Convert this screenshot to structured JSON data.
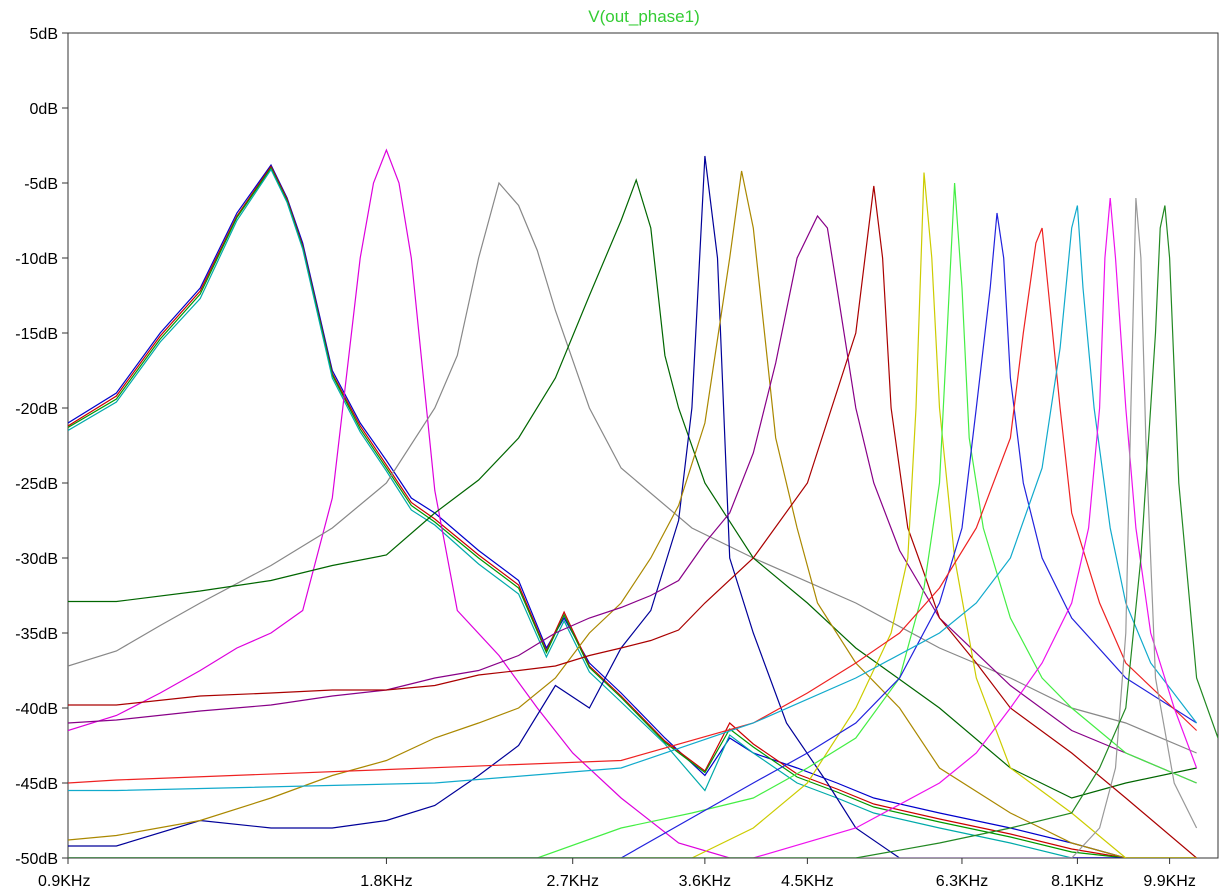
{
  "chart_data": {
    "type": "line",
    "title": "V(out_phase1)",
    "title_color": "#33cc33",
    "xscale": "log",
    "xlim": [
      0.9,
      11.0
    ],
    "ylim": [
      -50,
      5
    ],
    "grid": false,
    "xticks": [
      {
        "value": 0.9,
        "label": "0.9KHz"
      },
      {
        "value": 1.8,
        "label": "1.8KHz"
      },
      {
        "value": 2.7,
        "label": "2.7KHz"
      },
      {
        "value": 3.6,
        "label": "3.6KHz"
      },
      {
        "value": 4.5,
        "label": "4.5KHz"
      },
      {
        "value": 6.3,
        "label": "6.3KHz"
      },
      {
        "value": 8.1,
        "label": "8.1KHz"
      },
      {
        "value": 9.9,
        "label": "9.9KHz"
      }
    ],
    "yticks": [
      {
        "value": 5,
        "label": "5dB"
      },
      {
        "value": 0,
        "label": "0dB"
      },
      {
        "value": -5,
        "label": "-5dB"
      },
      {
        "value": -10,
        "label": "-10dB"
      },
      {
        "value": -15,
        "label": "-15dB"
      },
      {
        "value": -20,
        "label": "-20dB"
      },
      {
        "value": -25,
        "label": "-25dB"
      },
      {
        "value": -30,
        "label": "-30dB"
      },
      {
        "value": -35,
        "label": "-35dB"
      },
      {
        "value": -40,
        "label": "-40dB"
      },
      {
        "value": -45,
        "label": "-45dB"
      },
      {
        "value": -50,
        "label": "-50dB"
      }
    ],
    "series": [
      {
        "color": "#0000cc",
        "x": [
          0.9,
          1.0,
          1.1,
          1.2,
          1.3,
          1.4,
          1.45,
          1.5,
          1.6,
          1.7,
          1.8,
          1.9,
          2.0,
          2.2,
          2.4,
          2.55,
          2.65,
          2.8,
          3.0,
          3.3,
          3.6,
          3.8,
          4.0,
          4.4,
          4.8,
          5.2,
          6.0,
          7.0,
          8.0,
          9.0,
          10.5
        ],
        "y": [
          -21,
          -19,
          -15,
          -12,
          -7,
          -3.8,
          -6,
          -9,
          -17.5,
          -21,
          -23.5,
          -26,
          -27,
          -29.5,
          -31.5,
          -36,
          -34,
          -37,
          -39,
          -42,
          -44.5,
          -42,
          -43,
          -44,
          -45,
          -46,
          -47,
          -48,
          -49,
          -50,
          -50
        ]
      },
      {
        "color": "#cc0000",
        "x": [
          0.9,
          1.0,
          1.1,
          1.2,
          1.3,
          1.4,
          1.45,
          1.5,
          1.6,
          1.7,
          1.8,
          1.9,
          2.0,
          2.2,
          2.4,
          2.55,
          2.65,
          2.8,
          3.0,
          3.3,
          3.6,
          3.8,
          4.0,
          4.4,
          4.8,
          5.2,
          6.0,
          7.0,
          8.0,
          9.0,
          10.5
        ],
        "y": [
          -21.2,
          -19.2,
          -15.2,
          -12.2,
          -7.2,
          -3.9,
          -6.1,
          -9.2,
          -17.7,
          -21.2,
          -23.8,
          -26.3,
          -27.4,
          -29.8,
          -31.8,
          -36.2,
          -33.6,
          -37.2,
          -39.2,
          -42.2,
          -44.2,
          -41,
          -42.4,
          -44.4,
          -45.4,
          -46.4,
          -47.4,
          -48.4,
          -49.4,
          -50,
          -50
        ]
      },
      {
        "color": "#009900",
        "x": [
          0.9,
          1.0,
          1.1,
          1.2,
          1.3,
          1.4,
          1.45,
          1.5,
          1.6,
          1.7,
          1.8,
          1.9,
          2.0,
          2.2,
          2.4,
          2.55,
          2.65,
          2.8,
          3.0,
          3.3,
          3.6,
          3.8,
          4.0,
          4.4,
          4.8,
          5.2,
          6.0,
          7.0,
          8.0,
          9.0,
          10.5
        ],
        "y": [
          -21.3,
          -19.4,
          -15.4,
          -12.4,
          -7.3,
          -4.0,
          -6.2,
          -9.3,
          -17.8,
          -21.4,
          -24,
          -26.5,
          -27.6,
          -30,
          -32,
          -36.3,
          -33.8,
          -37.3,
          -39.3,
          -42.3,
          -44.3,
          -41.4,
          -42.6,
          -44.6,
          -45.6,
          -46.6,
          -47.6,
          -48.6,
          -49.6,
          -50,
          -50
        ]
      },
      {
        "color": "#00aaaa",
        "x": [
          0.9,
          1.0,
          1.1,
          1.2,
          1.3,
          1.4,
          1.45,
          1.5,
          1.6,
          1.7,
          1.8,
          1.9,
          2.0,
          2.2,
          2.4,
          2.55,
          2.65,
          2.8,
          3.0,
          3.3,
          3.6,
          3.8,
          4.0,
          4.4,
          4.8,
          5.2,
          6.0,
          7.0,
          8.0,
          9.0,
          10.5
        ],
        "y": [
          -21.5,
          -19.6,
          -15.6,
          -12.7,
          -7.5,
          -4.1,
          -6.3,
          -9.4,
          -18,
          -21.6,
          -24.2,
          -26.8,
          -27.8,
          -30.4,
          -32.4,
          -36.6,
          -34.2,
          -37.6,
          -39.6,
          -42.4,
          -45.5,
          -41.8,
          -43,
          -45,
          -46,
          -47,
          -48,
          -49,
          -50,
          -50,
          -50
        ]
      },
      {
        "color": "#dd00dd",
        "x": [
          0.9,
          1.0,
          1.1,
          1.2,
          1.3,
          1.4,
          1.5,
          1.6,
          1.7,
          1.75,
          1.8,
          1.85,
          1.9,
          2.0,
          2.1,
          2.3,
          2.5,
          2.7,
          3.0,
          3.4,
          3.8,
          4.2,
          5.0,
          6.0,
          7.0,
          8.0,
          9.0,
          10.5
        ],
        "y": [
          -41.5,
          -40.5,
          -39,
          -37.5,
          -36,
          -35,
          -33.5,
          -26,
          -10,
          -5,
          -2.8,
          -5,
          -10,
          -25.5,
          -33.5,
          -36.5,
          -40,
          -43,
          -46,
          -49,
          -50,
          -50,
          -50,
          -50,
          -50,
          -50,
          -50,
          -50
        ]
      },
      {
        "color": "#888888",
        "x": [
          0.9,
          1.0,
          1.1,
          1.2,
          1.4,
          1.6,
          1.8,
          2.0,
          2.1,
          2.2,
          2.3,
          2.4,
          2.5,
          2.6,
          2.8,
          3.0,
          3.5,
          4.0,
          5.0,
          6.0,
          7.0,
          8.0,
          9.0,
          10.5
        ],
        "y": [
          -37.2,
          -36.2,
          -34.5,
          -33,
          -30.5,
          -28,
          -25,
          -20,
          -16.5,
          -10,
          -5,
          -6.5,
          -9.5,
          -13.5,
          -20,
          -24,
          -28,
          -30,
          -33,
          -36,
          -38,
          -40,
          -41,
          -43
        ]
      },
      {
        "color": "#006600",
        "x": [
          0.9,
          1.0,
          1.2,
          1.4,
          1.6,
          1.8,
          2.0,
          2.2,
          2.4,
          2.6,
          2.8,
          3.0,
          3.1,
          3.2,
          3.3,
          3.4,
          3.6,
          4.0,
          4.5,
          5.0,
          6.0,
          7.0,
          8.0,
          9.0,
          10.5
        ],
        "y": [
          -32.9,
          -32.9,
          -32.2,
          -31.5,
          -30.5,
          -29.8,
          -27,
          -24.8,
          -22,
          -18,
          -12.5,
          -7.5,
          -4.8,
          -8,
          -16.5,
          -20,
          -25,
          -30,
          -33,
          -36,
          -40,
          -44,
          -46,
          -45,
          -44
        ]
      },
      {
        "color": "#000099",
        "x": [
          0.9,
          1.0,
          1.2,
          1.4,
          1.6,
          1.8,
          2.0,
          2.2,
          2.4,
          2.6,
          2.8,
          3.0,
          3.2,
          3.4,
          3.5,
          3.6,
          3.7,
          3.8,
          4.0,
          4.3,
          4.7,
          5.0,
          5.5,
          6.0,
          7.0,
          8.0,
          9.0,
          10.5
        ],
        "y": [
          -49.2,
          -49.2,
          -47.5,
          -48,
          -48,
          -47.5,
          -46.5,
          -44.5,
          -42.5,
          -38.5,
          -40,
          -36,
          -33.5,
          -27.5,
          -20,
          -3.2,
          -10,
          -30,
          -35,
          -41,
          -45,
          -48,
          -50,
          -50,
          -50,
          -50,
          -50,
          -50
        ]
      },
      {
        "color": "#aa8800",
        "x": [
          0.9,
          1.0,
          1.2,
          1.4,
          1.6,
          1.8,
          2.0,
          2.2,
          2.4,
          2.6,
          2.8,
          3.0,
          3.2,
          3.4,
          3.6,
          3.8,
          3.9,
          4.0,
          4.2,
          4.4,
          4.6,
          5.0,
          5.5,
          6.0,
          7.0,
          8.0,
          9.0,
          10.5
        ],
        "y": [
          -48.8,
          -48.5,
          -47.5,
          -46,
          -44.5,
          -43.5,
          -42,
          -41,
          -40,
          -38,
          -35,
          -33,
          -30,
          -26.5,
          -21,
          -10,
          -4.2,
          -8,
          -22,
          -28,
          -33,
          -37,
          -40,
          -44,
          -47,
          -49,
          -50,
          -50
        ]
      },
      {
        "color": "#880088",
        "x": [
          0.9,
          1.0,
          1.2,
          1.4,
          1.6,
          1.8,
          2.0,
          2.2,
          2.4,
          2.6,
          2.8,
          3.0,
          3.2,
          3.4,
          3.6,
          3.8,
          4.0,
          4.2,
          4.4,
          4.6,
          4.7,
          4.8,
          5.0,
          5.2,
          5.5,
          6.0,
          7.0,
          8.0,
          9.0,
          10.5
        ],
        "y": [
          -41,
          -40.8,
          -40.2,
          -39.8,
          -39.2,
          -38.8,
          -38,
          -37.5,
          -36.5,
          -35,
          -34,
          -33.3,
          -32.5,
          -31.5,
          -29,
          -27,
          -23,
          -17,
          -10,
          -7.2,
          -8,
          -12,
          -20,
          -25,
          -29.5,
          -34,
          -38.5,
          -41.5,
          -43,
          -45
        ]
      },
      {
        "color": "#aa0000",
        "x": [
          0.9,
          1.0,
          1.2,
          1.4,
          1.6,
          1.8,
          2.0,
          2.2,
          2.4,
          2.6,
          2.8,
          3.0,
          3.2,
          3.4,
          3.6,
          4.0,
          4.5,
          5.0,
          5.2,
          5.3,
          5.4,
          5.6,
          5.8,
          6.0,
          6.5,
          7.0,
          8.0,
          9.0,
          10.5
        ],
        "y": [
          -39.8,
          -39.8,
          -39.2,
          -39,
          -38.8,
          -38.8,
          -38.5,
          -37.8,
          -37.5,
          -37.2,
          -36.5,
          -36,
          -35.5,
          -34.8,
          -33,
          -30,
          -25,
          -15,
          -5.2,
          -10,
          -20,
          -28,
          -31,
          -34,
          -37,
          -40,
          -43,
          -46,
          -50
        ]
      },
      {
        "color": "#cccc00",
        "x": [
          0.9,
          1.0,
          1.5,
          2.0,
          2.5,
          3.0,
          3.5,
          4.0,
          4.5,
          5.0,
          5.4,
          5.6,
          5.7,
          5.8,
          5.9,
          6.0,
          6.2,
          6.5,
          7.0,
          8.0,
          9.0,
          10.5
        ],
        "y": [
          -50,
          -50,
          -50,
          -50,
          -50,
          -50,
          -50,
          -48,
          -45,
          -40,
          -35,
          -30,
          -20,
          -4.3,
          -10,
          -20,
          -30,
          -38,
          -44,
          -47,
          -50,
          -50
        ]
      },
      {
        "color": "#44ee44",
        "x": [
          0.9,
          1.0,
          2.0,
          2.5,
          3.0,
          3.5,
          4.0,
          4.5,
          5.0,
          5.5,
          5.8,
          6.0,
          6.1,
          6.2,
          6.3,
          6.4,
          6.6,
          7.0,
          7.5,
          8.0,
          9.0,
          10.5
        ],
        "y": [
          -50,
          -50,
          -50,
          -50,
          -48,
          -47,
          -46,
          -44,
          -42,
          -38,
          -32,
          -25,
          -15,
          -5,
          -12,
          -22,
          -28,
          -34,
          -38,
          -40,
          -43,
          -45
        ]
      },
      {
        "color": "#2222dd",
        "x": [
          0.9,
          1.0,
          2.0,
          3.0,
          4.0,
          4.5,
          5.0,
          5.5,
          6.0,
          6.3,
          6.5,
          6.7,
          6.8,
          6.9,
          7.0,
          7.2,
          7.5,
          8.0,
          9.0,
          10.5
        ],
        "y": [
          -50,
          -50,
          -50,
          -50,
          -45,
          -43,
          -41,
          -38,
          -33,
          -28,
          -20,
          -12,
          -7,
          -10,
          -18,
          -25,
          -30,
          -34,
          -38,
          -41
        ]
      },
      {
        "color": "#ee2222",
        "x": [
          0.9,
          1.0,
          3.0,
          4.0,
          4.5,
          5.0,
          5.5,
          6.0,
          6.5,
          7.0,
          7.2,
          7.4,
          7.5,
          7.6,
          7.8,
          8.0,
          8.5,
          9.0,
          10.5
        ],
        "y": [
          -45,
          -44.8,
          -43.5,
          -41,
          -39,
          -37,
          -35,
          -32,
          -28,
          -22,
          -15,
          -9,
          -8,
          -12,
          -20,
          -27,
          -33,
          -37,
          -41.5
        ]
      },
      {
        "color": "#11aacc",
        "x": [
          0.9,
          1.0,
          2.0,
          3.0,
          4.0,
          5.0,
          6.0,
          6.5,
          7.0,
          7.5,
          7.8,
          8.0,
          8.1,
          8.2,
          8.4,
          8.7,
          9.0,
          9.5,
          10.5
        ],
        "y": [
          -45.5,
          -45.5,
          -45,
          -44,
          -41,
          -38,
          -35,
          -33,
          -30,
          -24,
          -16,
          -8,
          -6.5,
          -12,
          -20,
          -28,
          -33,
          -37,
          -41
        ]
      },
      {
        "color": "#ee11ee",
        "x": [
          0.9,
          1.0,
          4.0,
          5.0,
          6.0,
          6.5,
          7.0,
          7.5,
          8.0,
          8.3,
          8.5,
          8.6,
          8.7,
          8.8,
          9.0,
          9.2,
          9.5,
          10.0,
          10.5
        ],
        "y": [
          -50,
          -50,
          -50,
          -48,
          -45,
          -43,
          -40,
          -37,
          -33,
          -28,
          -20,
          -10,
          -6,
          -10,
          -20,
          -28,
          -35,
          -40,
          -44
        ]
      },
      {
        "color": "#999999",
        "x": [
          0.9,
          1.0,
          5.0,
          6.0,
          7.0,
          8.0,
          8.5,
          8.8,
          9.0,
          9.1,
          9.2,
          9.3,
          9.4,
          9.6,
          10.0,
          10.5
        ],
        "y": [
          -50,
          -50,
          -50,
          -50,
          -50,
          -50,
          -48,
          -44,
          -35,
          -20,
          -6,
          -10,
          -22,
          -38,
          -45,
          -48
        ]
      },
      {
        "color": "#228822",
        "x": [
          0.9,
          1.0,
          5.0,
          6.0,
          7.0,
          8.0,
          8.5,
          9.0,
          9.3,
          9.6,
          9.7,
          9.8,
          9.9,
          10.1,
          10.5,
          11.0
        ],
        "y": [
          -50,
          -50,
          -50,
          -49,
          -48,
          -47,
          -44,
          -40,
          -30,
          -15,
          -8,
          -6.5,
          -10,
          -25,
          -38,
          -42
        ]
      }
    ]
  }
}
